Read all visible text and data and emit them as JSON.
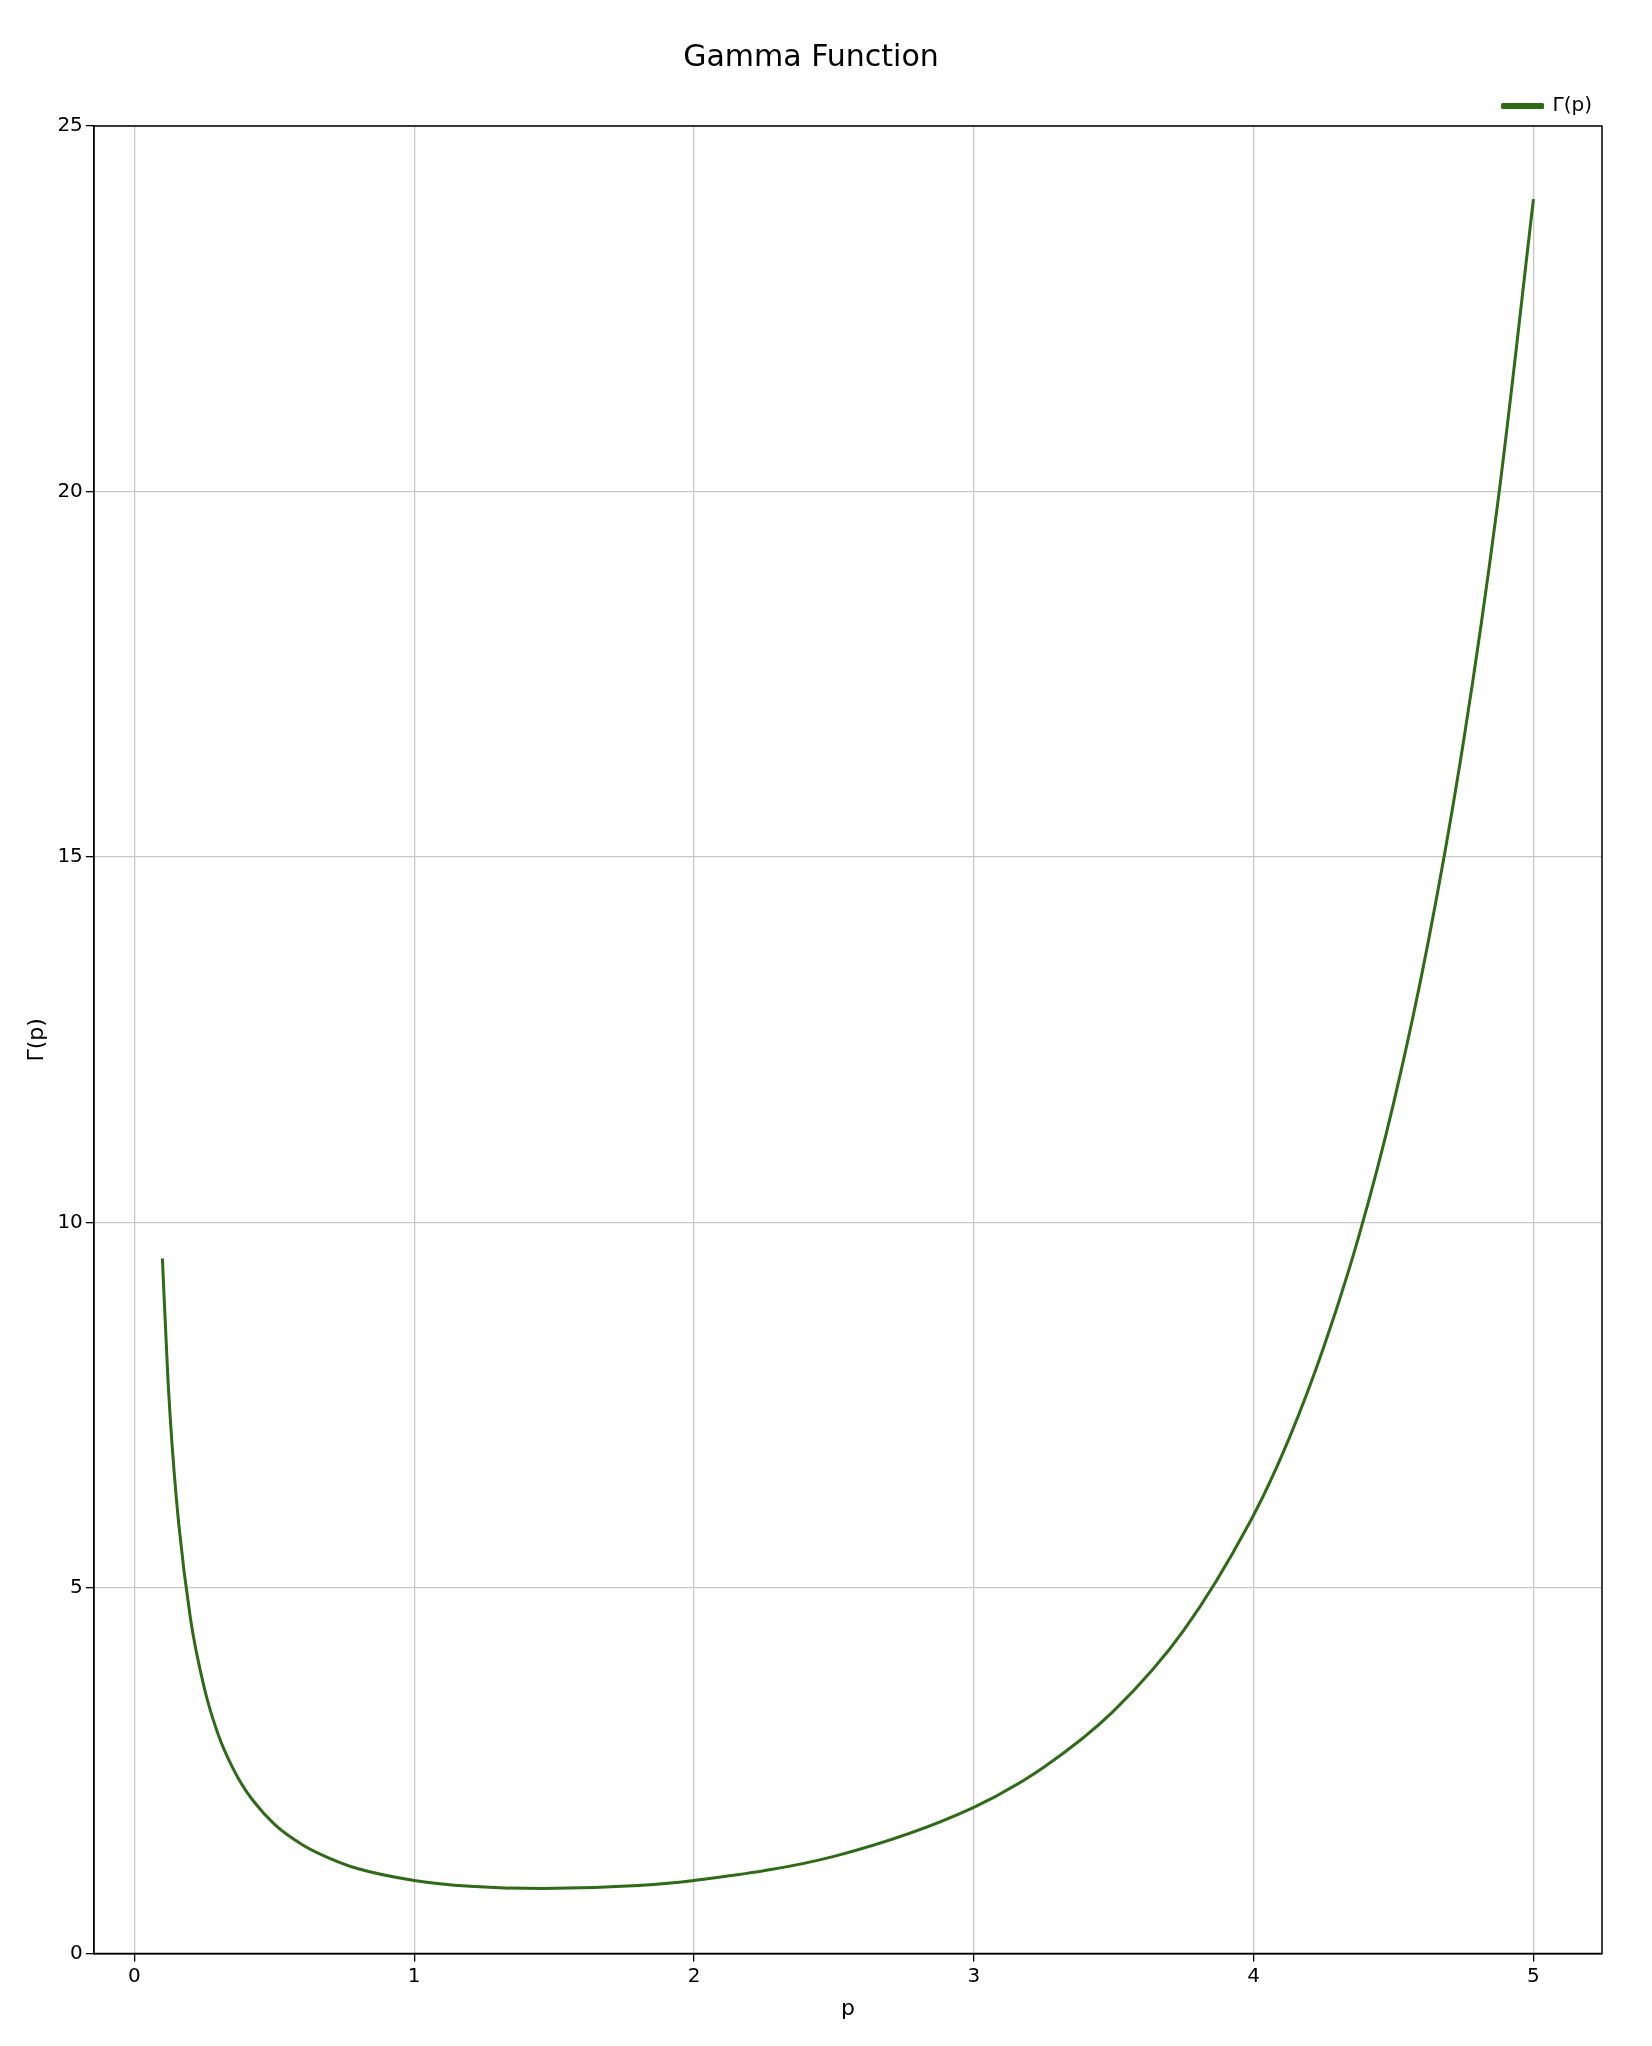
{
  "chart_data": {
    "type": "line",
    "title": "Gamma Function",
    "xlabel": "p",
    "ylabel": "Γ(p)",
    "x": [
      0.1,
      0.12,
      0.15,
      0.2,
      0.25,
      0.3,
      0.35,
      0.4,
      0.5,
      0.6,
      0.7,
      0.8,
      1.0,
      1.2,
      1.46,
      1.8,
      2.0,
      2.5,
      3.0,
      3.25,
      3.5,
      3.75,
      4.0,
      4.125,
      4.25,
      4.375,
      4.5,
      4.625,
      4.75,
      4.875,
      5.0
    ],
    "series": [
      {
        "name": "Γ(p)",
        "color": "#2e6b16",
        "values": [
          9.51,
          7.84,
          6.22,
          4.59,
          3.63,
          2.99,
          2.55,
          2.22,
          1.77,
          1.49,
          1.3,
          1.16,
          1.0,
          0.92,
          0.89,
          0.93,
          1.0,
          1.33,
          2.0,
          2.55,
          3.32,
          4.42,
          6.0,
          7.03,
          8.29,
          9.8,
          11.63,
          13.86,
          16.58,
          19.92,
          24.0
        ]
      }
    ],
    "xlim": [
      -0.145,
      5.245
    ],
    "ylim": [
      0,
      25
    ],
    "xticks": [
      0,
      1,
      2,
      3,
      4,
      5
    ],
    "yticks": [
      0,
      5,
      10,
      15,
      20,
      25
    ],
    "grid": true,
    "legend": "top right"
  }
}
